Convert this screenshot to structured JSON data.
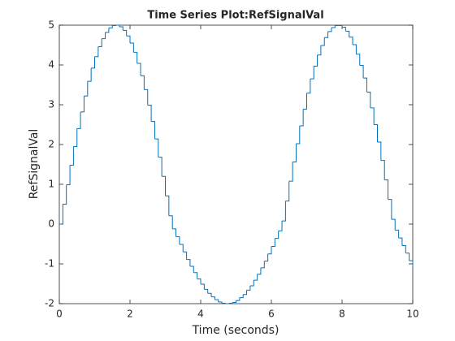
{
  "chart_data": {
    "type": "stairs",
    "title": "Time Series Plot:RefSignalVal",
    "xlabel": "Time (seconds)",
    "ylabel": "RefSignalVal",
    "x": [
      0,
      0.1,
      0.2,
      0.3,
      0.4,
      0.5,
      0.6,
      0.7,
      0.8,
      0.9,
      1,
      1.1,
      1.2,
      1.3,
      1.4,
      1.5,
      1.6,
      1.7,
      1.8,
      1.9,
      2,
      2.1,
      2.2,
      2.3,
      2.4,
      2.5,
      2.6,
      2.7,
      2.8,
      2.9,
      3,
      3.1,
      3.2,
      3.3,
      3.4,
      3.5,
      3.6,
      3.7,
      3.8,
      3.9,
      4,
      4.1,
      4.2,
      4.3,
      4.4,
      4.5,
      4.6,
      4.7,
      4.8,
      4.9,
      5,
      5.1,
      5.2,
      5.3,
      5.4,
      5.5,
      5.6,
      5.7,
      5.8,
      5.9,
      6,
      6.1,
      6.2,
      6.3,
      6.4,
      6.5,
      6.6,
      6.7,
      6.8,
      6.9,
      7,
      7.1,
      7.2,
      7.3,
      7.4,
      7.5,
      7.6,
      7.7,
      7.8,
      7.9,
      8,
      8.1,
      8.2,
      8.3,
      8.4,
      8.5,
      8.6,
      8.7,
      8.8,
      8.9,
      9,
      9.1,
      9.2,
      9.3,
      9.4,
      9.5,
      9.6,
      9.7,
      9.8,
      9.9,
      10
    ],
    "values": [
      0,
      0.5,
      0.99,
      1.48,
      1.95,
      2.4,
      2.82,
      3.22,
      3.59,
      3.92,
      4.21,
      4.46,
      4.66,
      4.82,
      4.93,
      4.99,
      5.0,
      4.96,
      4.87,
      4.73,
      4.55,
      4.32,
      4.04,
      3.73,
      3.38,
      2.99,
      2.58,
      2.14,
      1.68,
      1.2,
      0.71,
      0.21,
      -0.12,
      -0.32,
      -0.51,
      -0.7,
      -0.89,
      -1.06,
      -1.22,
      -1.38,
      -1.51,
      -1.64,
      -1.74,
      -1.83,
      -1.9,
      -1.96,
      -1.99,
      -2.0,
      -1.99,
      -1.97,
      -1.92,
      -1.85,
      -1.77,
      -1.66,
      -1.55,
      -1.41,
      -1.26,
      -1.1,
      -0.93,
      -0.75,
      -0.56,
      -0.36,
      -0.17,
      0.08,
      0.58,
      1.08,
      1.56,
      2.02,
      2.47,
      2.89,
      3.29,
      3.65,
      3.97,
      4.25,
      4.49,
      4.69,
      4.84,
      4.94,
      4.99,
      4.99,
      4.95,
      4.85,
      4.7,
      4.51,
      4.27,
      3.99,
      3.67,
      3.32,
      2.92,
      2.5,
      2.06,
      1.6,
      1.11,
      0.62,
      0.12,
      -0.15,
      -0.35,
      -0.54,
      -0.73,
      -0.92,
      -1.09
    ],
    "color": "#0072bd",
    "xlim": [
      0,
      10
    ],
    "xticks": [
      0,
      2,
      4,
      6,
      8,
      10
    ],
    "ylim": [
      -2,
      5
    ],
    "yticks": [
      -2,
      -1,
      0,
      1,
      2,
      3,
      4,
      5
    ],
    "grid": false
  }
}
